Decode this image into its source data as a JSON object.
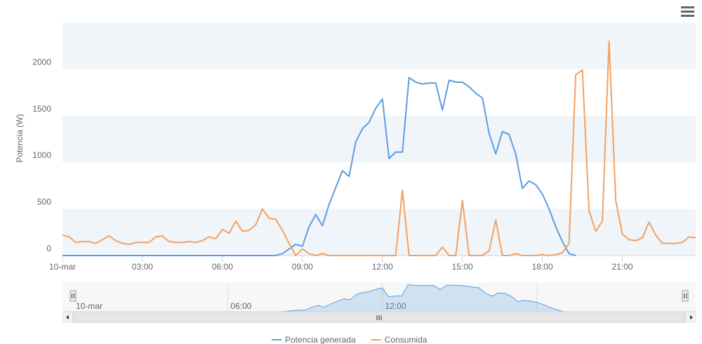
{
  "chart_data": {
    "type": "line",
    "y_axis_label": "Potencia (W)",
    "x": [
      0,
      0.25,
      0.5,
      0.75,
      1,
      1.25,
      1.5,
      1.75,
      2,
      2.25,
      2.5,
      2.75,
      3,
      3.25,
      3.5,
      3.75,
      4,
      4.25,
      4.5,
      4.75,
      5,
      5.25,
      5.5,
      5.75,
      6,
      6.25,
      6.5,
      6.75,
      7,
      7.25,
      7.5,
      7.75,
      8,
      8.25,
      8.5,
      8.75,
      9,
      9.25,
      9.5,
      9.75,
      10,
      10.25,
      10.5,
      10.75,
      11,
      11.25,
      11.5,
      11.75,
      12,
      12.25,
      12.5,
      12.75,
      13,
      13.25,
      13.5,
      13.75,
      14,
      14.25,
      14.5,
      14.75,
      15,
      15.25,
      15.5,
      15.75,
      16,
      16.25,
      16.5,
      16.75,
      17,
      17.25,
      17.5,
      17.75,
      18,
      18.25,
      18.5,
      18.75,
      19,
      19.25,
      19.5,
      19.75,
      20,
      20.25,
      20.5,
      20.75,
      21,
      21.25,
      21.5,
      21.75,
      22,
      22.25,
      22.5,
      22.75,
      23,
      23.25,
      23.5,
      23.75
    ],
    "series": [
      {
        "name": "Potencia generada",
        "color": "#5b9ee0",
        "values": [
          0,
          0,
          0,
          0,
          0,
          0,
          0,
          0,
          0,
          0,
          0,
          0,
          0,
          0,
          0,
          0,
          0,
          0,
          0,
          0,
          0,
          0,
          0,
          0,
          0,
          0,
          0,
          0,
          0,
          0,
          0,
          0,
          0,
          20,
          70,
          120,
          100,
          310,
          440,
          320,
          550,
          730,
          910,
          850,
          1220,
          1360,
          1430,
          1580,
          1680,
          1040,
          1110,
          1110,
          1910,
          1860,
          1840,
          1850,
          1850,
          1560,
          1880,
          1860,
          1860,
          1810,
          1740,
          1690,
          1310,
          1090,
          1330,
          1300,
          1090,
          720,
          800,
          760,
          660,
          500,
          310,
          150,
          20,
          0,
          null,
          null,
          null,
          null,
          null,
          null,
          null,
          null,
          null,
          null,
          null,
          null,
          null,
          null,
          null,
          null,
          null,
          null
        ]
      },
      {
        "name": "Consumida",
        "color": "#f4a060",
        "values": [
          220,
          200,
          140,
          150,
          150,
          130,
          170,
          210,
          160,
          130,
          120,
          140,
          140,
          140,
          200,
          210,
          150,
          140,
          140,
          150,
          140,
          160,
          200,
          180,
          280,
          240,
          370,
          260,
          270,
          330,
          500,
          400,
          390,
          270,
          130,
          0,
          70,
          20,
          0,
          20,
          0,
          0,
          0,
          0,
          0,
          0,
          0,
          0,
          0,
          0,
          0,
          700,
          0,
          0,
          0,
          0,
          0,
          90,
          0,
          0,
          590,
          0,
          0,
          0,
          50,
          380,
          0,
          0,
          20,
          0,
          0,
          0,
          10,
          0,
          10,
          30,
          130,
          1940,
          1990,
          480,
          260,
          370,
          2300,
          590,
          230,
          170,
          160,
          190,
          360,
          220,
          130,
          130,
          130,
          140,
          200,
          190
        ]
      }
    ],
    "xlim": [
      0,
      23.75
    ],
    "xticks": [
      {
        "value": 0,
        "label": "10-mar"
      },
      {
        "value": 3,
        "label": "03:00"
      },
      {
        "value": 6,
        "label": "06:00"
      },
      {
        "value": 9,
        "label": "09:00"
      },
      {
        "value": 12,
        "label": "12:00"
      },
      {
        "value": 15,
        "label": "15:00"
      },
      {
        "value": 18,
        "label": "18:00"
      },
      {
        "value": 21,
        "label": "21:00"
      }
    ],
    "ylim": [
      0,
      2500
    ],
    "yticks": [
      0,
      500,
      1000,
      1500,
      2000
    ],
    "alternate_bands": true,
    "legend": "bottom"
  }
}
